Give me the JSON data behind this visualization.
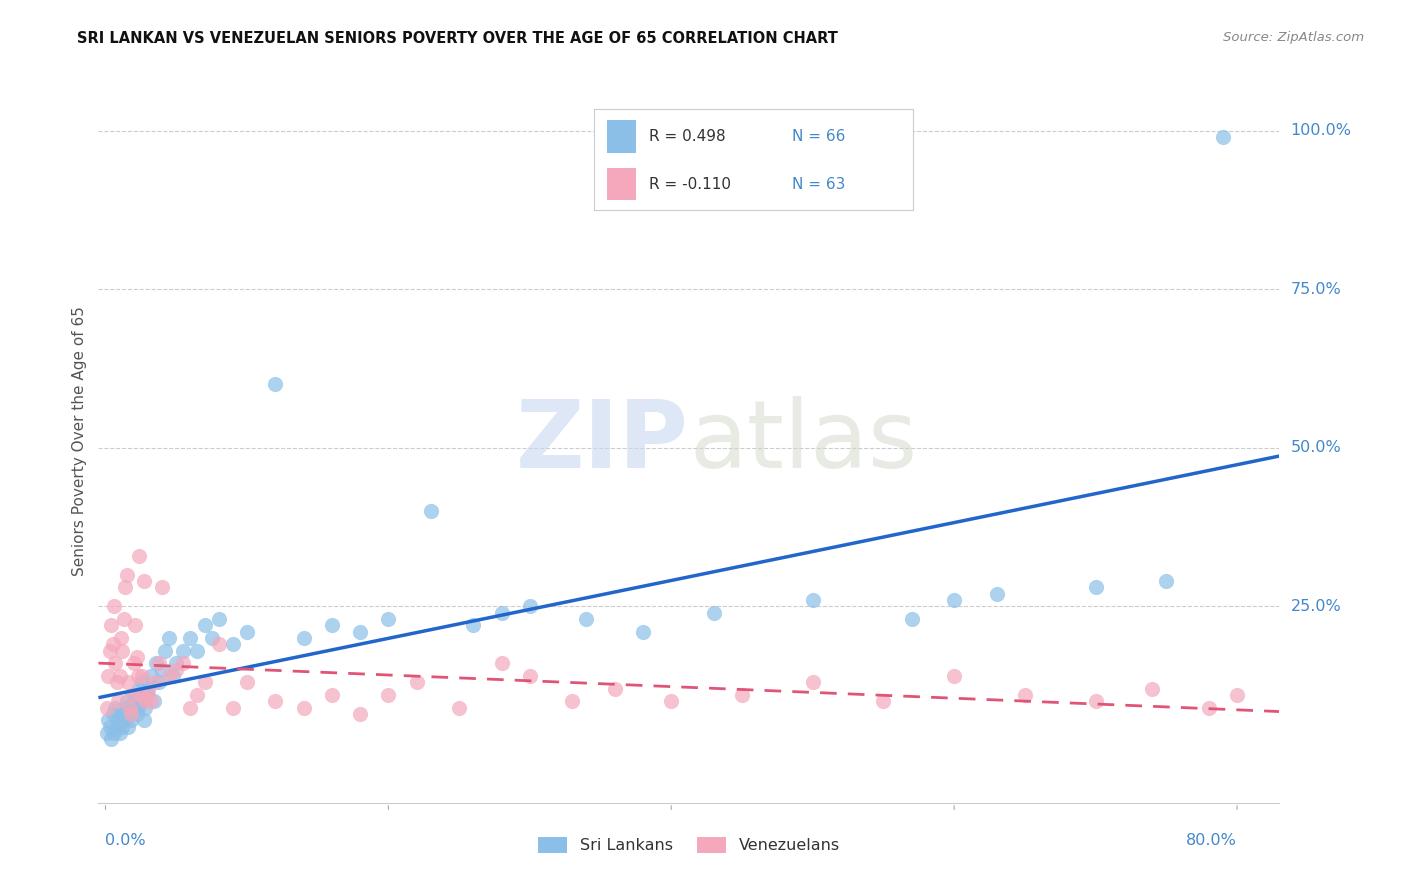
{
  "title": "SRI LANKAN VS VENEZUELAN SENIORS POVERTY OVER THE AGE OF 65 CORRELATION CHART",
  "source": "Source: ZipAtlas.com",
  "ylabel": "Seniors Poverty Over the Age of 65",
  "xlim": [
    -0.005,
    0.83
  ],
  "ylim": [
    -0.06,
    1.08
  ],
  "sri_lankan_color": "#8bbfe8",
  "venezuelan_color": "#f5a8bb",
  "sri_lankan_line_color": "#2266cc",
  "venezuelan_line_color": "#e05575",
  "background_color": "#ffffff",
  "watermark_zip": "ZIP",
  "watermark_atlas": "atlas",
  "legend_sri_r": "0.498",
  "legend_sri_n": "66",
  "legend_ven_r": "-0.110",
  "legend_ven_n": "63",
  "sri_lankans_label": "Sri Lankans",
  "venezuelans_label": "Venezuelans",
  "ytick_pos": [
    0.25,
    0.5,
    0.75,
    1.0
  ],
  "ytick_labels": [
    "25.0%",
    "50.0%",
    "75.0%",
    "100.0%"
  ],
  "sri_x": [
    0.001,
    0.002,
    0.003,
    0.004,
    0.005,
    0.006,
    0.007,
    0.008,
    0.009,
    0.01,
    0.011,
    0.012,
    0.013,
    0.014,
    0.015,
    0.016,
    0.017,
    0.018,
    0.019,
    0.02,
    0.021,
    0.022,
    0.023,
    0.024,
    0.025,
    0.026,
    0.027,
    0.028,
    0.029,
    0.03,
    0.032,
    0.034,
    0.036,
    0.038,
    0.04,
    0.042,
    0.045,
    0.048,
    0.05,
    0.055,
    0.06,
    0.065,
    0.07,
    0.075,
    0.08,
    0.09,
    0.1,
    0.12,
    0.14,
    0.16,
    0.18,
    0.2,
    0.23,
    0.26,
    0.3,
    0.34,
    0.38,
    0.43,
    0.5,
    0.57,
    0.63,
    0.7,
    0.75,
    0.79,
    0.28,
    0.6
  ],
  "sri_y": [
    0.05,
    0.07,
    0.06,
    0.04,
    0.08,
    0.05,
    0.09,
    0.06,
    0.07,
    0.05,
    0.08,
    0.06,
    0.07,
    0.09,
    0.1,
    0.06,
    0.08,
    0.07,
    0.09,
    0.1,
    0.11,
    0.08,
    0.09,
    0.12,
    0.1,
    0.13,
    0.07,
    0.09,
    0.11,
    0.12,
    0.14,
    0.1,
    0.16,
    0.13,
    0.15,
    0.18,
    0.2,
    0.14,
    0.16,
    0.18,
    0.2,
    0.18,
    0.22,
    0.2,
    0.23,
    0.19,
    0.21,
    0.6,
    0.2,
    0.22,
    0.21,
    0.23,
    0.4,
    0.22,
    0.25,
    0.23,
    0.21,
    0.24,
    0.26,
    0.23,
    0.27,
    0.28,
    0.29,
    0.99,
    0.24,
    0.26
  ],
  "ven_x": [
    0.001,
    0.002,
    0.003,
    0.004,
    0.005,
    0.006,
    0.007,
    0.008,
    0.009,
    0.01,
    0.011,
    0.012,
    0.013,
    0.014,
    0.015,
    0.016,
    0.017,
    0.018,
    0.019,
    0.02,
    0.021,
    0.022,
    0.023,
    0.024,
    0.025,
    0.026,
    0.027,
    0.028,
    0.03,
    0.032,
    0.035,
    0.038,
    0.04,
    0.045,
    0.05,
    0.055,
    0.06,
    0.065,
    0.07,
    0.08,
    0.09,
    0.1,
    0.12,
    0.14,
    0.16,
    0.18,
    0.2,
    0.22,
    0.25,
    0.28,
    0.3,
    0.33,
    0.36,
    0.4,
    0.45,
    0.5,
    0.55,
    0.6,
    0.65,
    0.7,
    0.74,
    0.78,
    0.8
  ],
  "ven_y": [
    0.09,
    0.14,
    0.18,
    0.22,
    0.19,
    0.25,
    0.16,
    0.13,
    0.1,
    0.14,
    0.2,
    0.18,
    0.23,
    0.28,
    0.3,
    0.13,
    0.09,
    0.08,
    0.11,
    0.16,
    0.22,
    0.17,
    0.14,
    0.33,
    0.11,
    0.14,
    0.29,
    0.1,
    0.11,
    0.1,
    0.13,
    0.16,
    0.28,
    0.14,
    0.15,
    0.16,
    0.09,
    0.11,
    0.13,
    0.19,
    0.09,
    0.13,
    0.1,
    0.09,
    0.11,
    0.08,
    0.11,
    0.13,
    0.09,
    0.16,
    0.14,
    0.1,
    0.12,
    0.1,
    0.11,
    0.13,
    0.1,
    0.14,
    0.11,
    0.1,
    0.12,
    0.09,
    0.11
  ]
}
